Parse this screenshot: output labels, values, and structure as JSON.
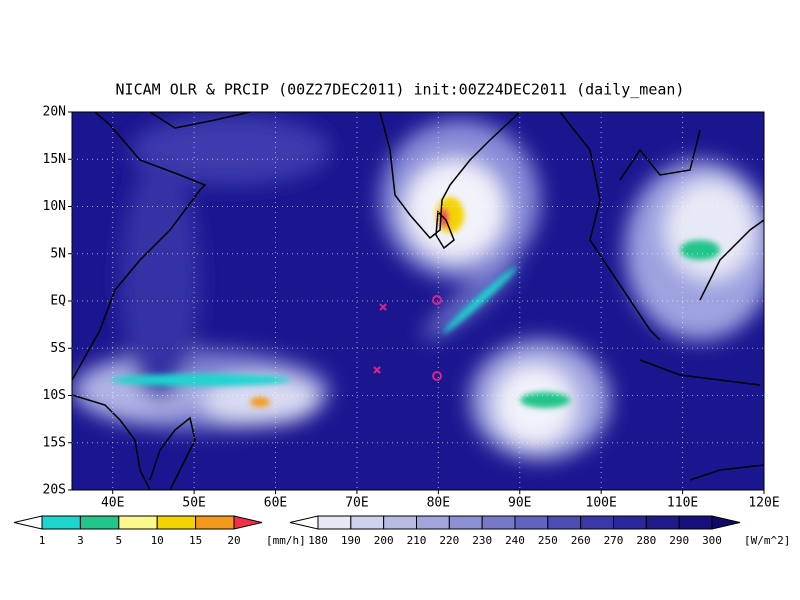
{
  "title": "NICAM OLR & PRCIP (00Z27DEC2011) init:00Z24DEC2011 (daily_mean)",
  "lat_labels": [
    "20N",
    "15N",
    "10N",
    "5N",
    "EQ",
    "5S",
    "10S",
    "15S",
    "20S"
  ],
  "lon_labels": [
    "40E",
    "50E",
    "60E",
    "70E",
    "80E",
    "90E",
    "100E",
    "110E",
    "120E"
  ],
  "precip_scale": {
    "labels": [
      "1",
      "3",
      "5",
      "10",
      "15",
      "20"
    ],
    "unit": "[mm/h]",
    "colors": [
      "#ffffff",
      "#1fd6cf",
      "#22c58a",
      "#fbf98c",
      "#f4d400",
      "#f39a1e",
      "#f0304a"
    ]
  },
  "olr_scale": {
    "labels": [
      "180",
      "190",
      "200",
      "210",
      "220",
      "230",
      "240",
      "250",
      "260",
      "270",
      "280",
      "290",
      "300"
    ],
    "unit": "[W/m^2]",
    "colors": [
      "#ffffff",
      "#e6e8f6",
      "#cfd2ee",
      "#b7bbe4",
      "#a2a6dc",
      "#8c90d2",
      "#7779c8",
      "#6263bf",
      "#4d4db4",
      "#3a38a9",
      "#2b279c",
      "#1f1b8c",
      "#160f7c",
      "#0e0a6a"
    ]
  }
}
